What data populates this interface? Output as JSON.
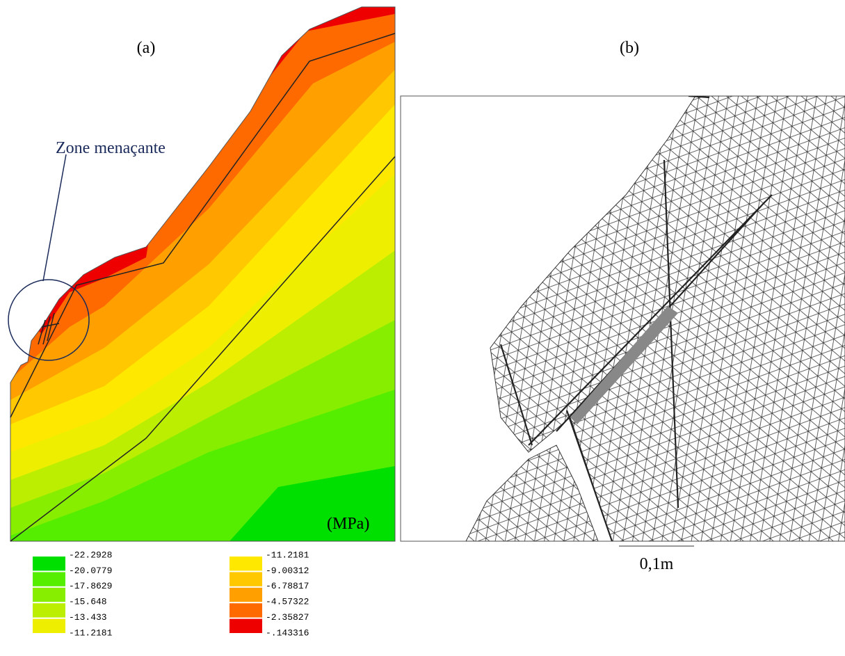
{
  "panels": [
    {
      "label": "(a)"
    },
    {
      "label": "(b)"
    }
  ],
  "annotation": "Zone menaçante",
  "legend": {
    "unit": "(MPa)",
    "columns": [
      {
        "labels": [
          "-22.2928",
          "-20.0779",
          "-17.8629",
          "-15.648",
          "-13.433",
          "-11.2181"
        ],
        "colors": [
          "#00e000",
          "#55ee00",
          "#88ee00",
          "#bbee00",
          "#eeee00"
        ]
      },
      {
        "labels": [
          "-11.2181",
          "-9.00312",
          "-6.78817",
          "-4.57322",
          "-2.35827",
          "-.143316"
        ],
        "colors": [
          "#ffe800",
          "#ffc800",
          "#ffa000",
          "#ff6a00",
          "#ee0000"
        ]
      }
    ]
  },
  "scale_bar": "0,1m"
}
